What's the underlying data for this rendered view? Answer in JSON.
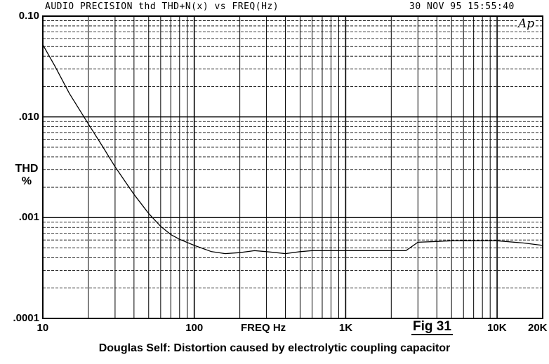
{
  "header": {
    "title": "AUDIO PRECISION thd THD+N(x) vs FREQ(Hz)",
    "timestamp": "30 NOV 95 15:55:40"
  },
  "logo_text": "Ap",
  "fig_label": "Fig 31",
  "caption": "Douglas Self: Distortion caused by electrolytic coupling capacitor",
  "chart_data": {
    "type": "line",
    "title": "AUDIO PRECISION thd THD+N(x) vs FREQ(Hz)",
    "xlabel": "FREQ Hz",
    "ylabel": "THD %",
    "x_scale": "log",
    "y_scale": "log",
    "xlim": [
      10,
      20000
    ],
    "ylim": [
      0.0001,
      0.1
    ],
    "grid": true,
    "x_ticks": [
      {
        "value": 10,
        "label": "10"
      },
      {
        "value": 100,
        "label": "100"
      },
      {
        "value": 1000,
        "label": "1K"
      },
      {
        "value": 10000,
        "label": "10K"
      },
      {
        "value": 20000,
        "label": "20K"
      }
    ],
    "y_ticks": [
      {
        "value": 0.1,
        "label": "0.10"
      },
      {
        "value": 0.01,
        "label": ".010"
      },
      {
        "value": 0.001,
        "label": ".001"
      },
      {
        "value": 0.0001,
        "label": ".0001"
      }
    ],
    "series": [
      {
        "x": [
          10,
          12,
          15,
          20,
          25,
          30,
          40,
          50,
          60,
          70,
          80,
          100,
          130,
          160,
          200,
          250,
          300,
          400,
          500,
          600,
          800,
          1000,
          1500,
          2000,
          2500,
          3000,
          4000,
          5000,
          6000,
          7000,
          8000,
          10000,
          15000,
          20000
        ],
        "y": [
          0.052,
          0.032,
          0.017,
          0.0085,
          0.005,
          0.0032,
          0.0017,
          0.0011,
          0.00082,
          0.00068,
          0.00061,
          0.00053,
          0.00046,
          0.00044,
          0.00045,
          0.00047,
          0.00046,
          0.00044,
          0.00046,
          0.00047,
          0.00047,
          0.00047,
          0.00047,
          0.00047,
          0.00047,
          0.00057,
          0.00058,
          0.00059,
          0.00059,
          0.00059,
          0.00059,
          0.00059,
          0.00056,
          0.00053
        ]
      }
    ]
  }
}
